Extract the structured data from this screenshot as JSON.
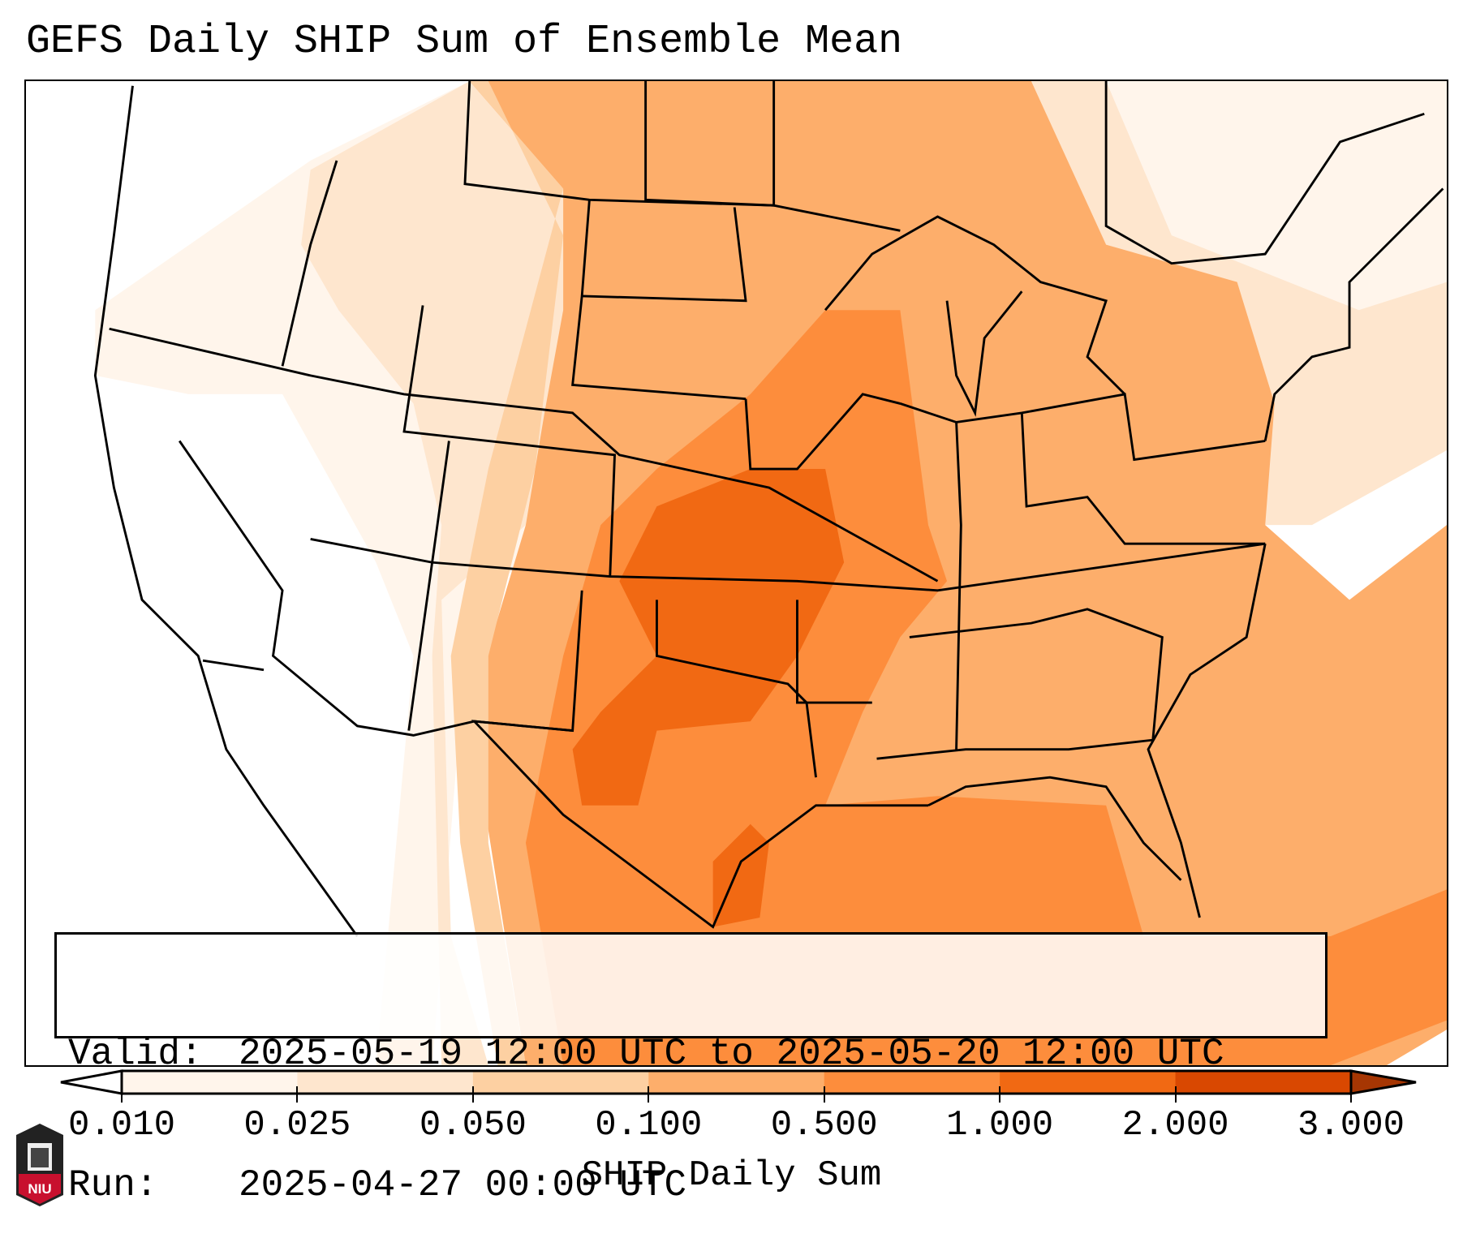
{
  "title": "GEFS Daily SHIP Sum of Ensemble Mean",
  "info": {
    "valid_label": "Valid:",
    "valid_value": "2025-05-19 12:00 UTC to 2025-05-20 12:00 UTC",
    "run_label": "Run:",
    "run_value": "2025-04-27 00:00 UTC"
  },
  "colorbar": {
    "label": "SHIP Daily Sum",
    "ticks": [
      "0.010",
      "0.025",
      "0.050",
      "0.100",
      "0.500",
      "1.000",
      "2.000",
      "3.000"
    ],
    "colors": [
      "#fff5eb",
      "#fee6ce",
      "#fdd0a2",
      "#fdae6b",
      "#fd8d3c",
      "#f16913",
      "#d94801"
    ],
    "under_color": "#ffffff",
    "over_color": "#a63603"
  },
  "logo": {
    "text": "NIU"
  }
}
